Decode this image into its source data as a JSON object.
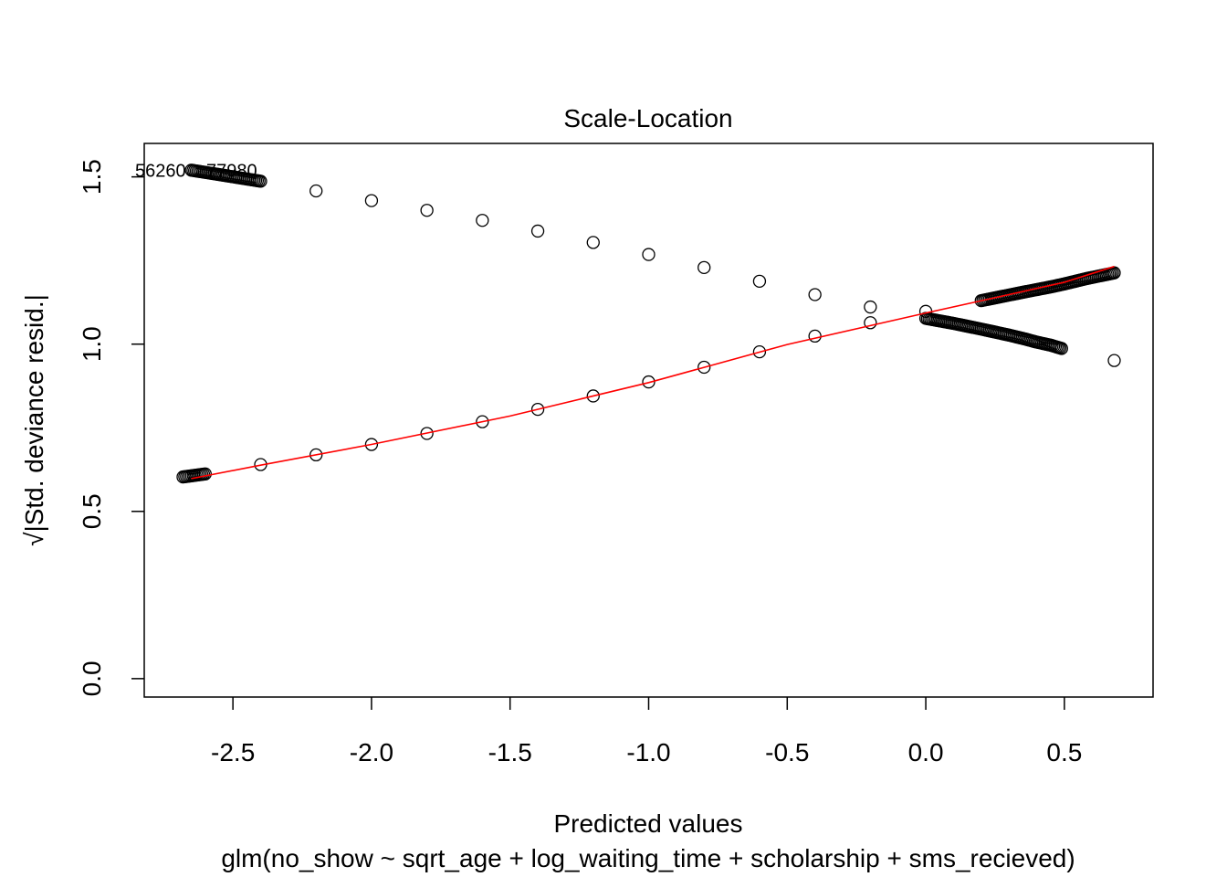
{
  "chart_data": {
    "type": "scatter",
    "title": "Scale-Location",
    "xlabel": "Predicted values",
    "subtitle": "glm(no_show ~ sqrt_age + log_waiting_time + scholarship + sms_recieved)",
    "ylabel": "√|Std. deviance resid.|",
    "xlim": [
      -2.82,
      0.82
    ],
    "ylim": [
      -0.055,
      1.6
    ],
    "x_ticks": [
      -2.5,
      -2.0,
      -1.5,
      -1.0,
      -0.5,
      0.0,
      0.5
    ],
    "x_tick_labels": [
      "-2.5",
      "-2.0",
      "-1.5",
      "-1.0",
      "-0.5",
      "0.0",
      "0.5"
    ],
    "y_ticks": [
      0.0,
      0.5,
      1.0,
      1.5
    ],
    "y_tick_labels": [
      "0.0",
      "0.5",
      "1.0",
      "1.5"
    ],
    "point_labels": [
      "56260",
      "77980"
    ],
    "series": [
      {
        "values": [
          {
            "x": -2.65,
            "y": 1.52
          },
          {
            "x": -2.55,
            "y": 1.507
          },
          {
            "x": -2.4,
            "y": 1.487
          },
          {
            "x": -2.2,
            "y": 1.458
          },
          {
            "x": -2.0,
            "y": 1.429
          },
          {
            "x": -1.8,
            "y": 1.4
          },
          {
            "x": -1.6,
            "y": 1.37
          },
          {
            "x": -1.4,
            "y": 1.338
          },
          {
            "x": -1.2,
            "y": 1.304
          },
          {
            "x": -1.0,
            "y": 1.268
          },
          {
            "x": -0.8,
            "y": 1.229
          },
          {
            "x": -0.6,
            "y": 1.188
          },
          {
            "x": -0.4,
            "y": 1.148
          },
          {
            "x": -0.2,
            "y": 1.111
          },
          {
            "x": 0.0,
            "y": 1.077
          },
          {
            "x": 0.1,
            "y": 1.062
          },
          {
            "x": 0.2,
            "y": 1.045
          },
          {
            "x": 0.3,
            "y": 1.027
          },
          {
            "x": 0.36,
            "y": 1.015
          },
          {
            "x": 0.4,
            "y": 1.006
          },
          {
            "x": 0.45,
            "y": 0.997
          },
          {
            "x": 0.49,
            "y": 0.987
          },
          {
            "x": 0.68,
            "y": 0.951
          }
        ]
      },
      {
        "values": [
          {
            "x": -2.68,
            "y": 0.603
          },
          {
            "x": -2.6,
            "y": 0.612
          },
          {
            "x": -2.4,
            "y": 0.64
          },
          {
            "x": -2.2,
            "y": 0.669
          },
          {
            "x": -2.0,
            "y": 0.7
          },
          {
            "x": -1.8,
            "y": 0.733
          },
          {
            "x": -1.6,
            "y": 0.768
          },
          {
            "x": -1.4,
            "y": 0.805
          },
          {
            "x": -1.2,
            "y": 0.845
          },
          {
            "x": -1.0,
            "y": 0.887
          },
          {
            "x": -0.8,
            "y": 0.931
          },
          {
            "x": -0.6,
            "y": 0.977
          },
          {
            "x": -0.4,
            "y": 1.024
          },
          {
            "x": -0.2,
            "y": 1.064
          },
          {
            "x": 0.0,
            "y": 1.098
          },
          {
            "x": 0.2,
            "y": 1.13
          },
          {
            "x": 0.35,
            "y": 1.155
          },
          {
            "x": 0.4,
            "y": 1.163
          },
          {
            "x": 0.45,
            "y": 1.171
          },
          {
            "x": 0.5,
            "y": 1.18
          },
          {
            "x": 0.55,
            "y": 1.19
          },
          {
            "x": 0.58,
            "y": 1.196
          },
          {
            "x": 0.68,
            "y": 1.213
          }
        ]
      }
    ],
    "smoother": [
      {
        "x": -2.65,
        "y": 0.598
      },
      {
        "x": -2.4,
        "y": 0.638
      },
      {
        "x": -2.0,
        "y": 0.7
      },
      {
        "x": -1.5,
        "y": 0.785
      },
      {
        "x": -1.0,
        "y": 0.885
      },
      {
        "x": -0.5,
        "y": 0.999
      },
      {
        "x": 0.0,
        "y": 1.093
      },
      {
        "x": 0.3,
        "y": 1.148
      },
      {
        "x": 0.5,
        "y": 1.185
      },
      {
        "x": 0.68,
        "y": 1.232
      }
    ],
    "colors": {
      "points": "#000000",
      "smoother": "#ff0000",
      "axis": "#000000",
      "background": "#ffffff"
    },
    "grid": false,
    "legend": "none"
  }
}
